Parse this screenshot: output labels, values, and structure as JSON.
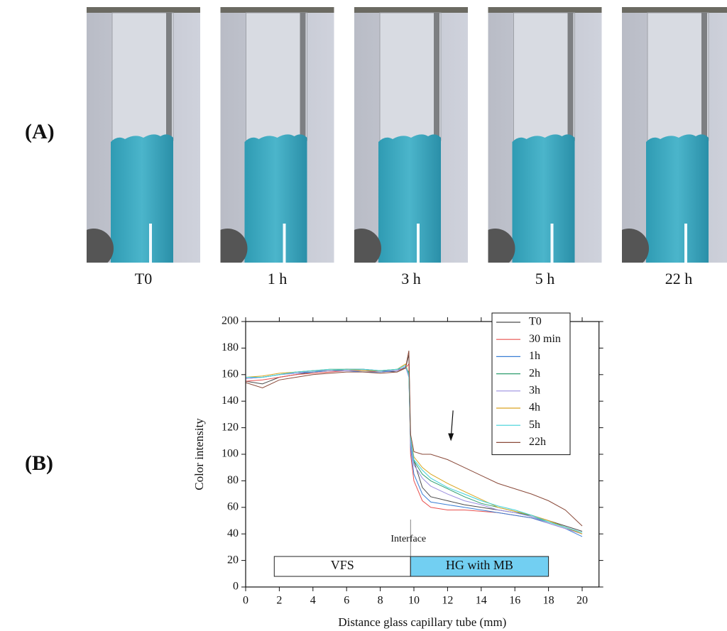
{
  "panel_labels": [
    "(A)",
    "(B)"
  ],
  "photos": {
    "labels": [
      "T0",
      "1 h",
      "3 h",
      "5 h",
      "22 h"
    ]
  },
  "chart_data": {
    "type": "line",
    "xlabel": "Distance glass capillary tube (mm)",
    "ylabel": "Color intensity",
    "xlim": [
      0,
      21
    ],
    "xticks": [
      0,
      2,
      4,
      6,
      8,
      10,
      12,
      14,
      16,
      18,
      20
    ],
    "ylim": [
      0,
      200
    ],
    "yticks": [
      0,
      20,
      40,
      60,
      80,
      100,
      120,
      140,
      160,
      180,
      200
    ],
    "legend": "upper right",
    "x": [
      0,
      1,
      2,
      3,
      4,
      5,
      6,
      7,
      8,
      9,
      9.5,
      9.7,
      9.8,
      10,
      10.5,
      11,
      12,
      13,
      14,
      15,
      16,
      17,
      18,
      19,
      20
    ],
    "series": [
      {
        "name": "T0",
        "color": "#4a4a4a",
        "values": [
          155,
          153,
          158,
          160,
          162,
          163,
          164,
          164,
          163,
          162,
          165,
          175,
          110,
          95,
          75,
          68,
          65,
          62,
          60,
          58,
          56,
          54,
          50,
          46,
          42
        ]
      },
      {
        "name": "30 min",
        "color": "#e8504e",
        "values": [
          155,
          156,
          158,
          160,
          161,
          162,
          163,
          163,
          162,
          163,
          165,
          168,
          100,
          80,
          65,
          60,
          58,
          58,
          57,
          56,
          54,
          52,
          48,
          44,
          40
        ]
      },
      {
        "name": "1h",
        "color": "#3a7fd5",
        "values": [
          157,
          158,
          160,
          161,
          162,
          163,
          163,
          162,
          162,
          163,
          166,
          160,
          105,
          85,
          70,
          64,
          62,
          60,
          58,
          56,
          54,
          52,
          48,
          44,
          38
        ]
      },
      {
        "name": "2h",
        "color": "#2e9e6e",
        "values": [
          158,
          158,
          160,
          162,
          163,
          163,
          164,
          163,
          163,
          164,
          165,
          162,
          110,
          95,
          85,
          80,
          74,
          68,
          63,
          60,
          57,
          53,
          49,
          45,
          40
        ]
      },
      {
        "name": "3h",
        "color": "#9b8fe0",
        "values": [
          157,
          158,
          160,
          161,
          163,
          163,
          163,
          163,
          163,
          163,
          166,
          158,
          108,
          92,
          82,
          76,
          70,
          65,
          62,
          58,
          56,
          53,
          48,
          44,
          40
        ]
      },
      {
        "name": "4h",
        "color": "#d9a520",
        "values": [
          158,
          159,
          161,
          162,
          163,
          164,
          164,
          163,
          163,
          164,
          168,
          160,
          112,
          98,
          90,
          85,
          78,
          72,
          66,
          60,
          57,
          54,
          50,
          45,
          40
        ]
      },
      {
        "name": "5h",
        "color": "#3fd1d8",
        "values": [
          158,
          158,
          160,
          162,
          163,
          164,
          164,
          164,
          163,
          164,
          167,
          160,
          112,
          96,
          88,
          82,
          75,
          70,
          65,
          61,
          58,
          54,
          49,
          45,
          41
        ]
      },
      {
        "name": "22h",
        "color": "#8a4a3a",
        "values": [
          154,
          150,
          156,
          158,
          160,
          161,
          162,
          162,
          161,
          162,
          165,
          178,
          115,
          102,
          100,
          100,
          96,
          90,
          84,
          78,
          74,
          70,
          65,
          58,
          46
        ]
      }
    ],
    "interface": {
      "label": "Interface",
      "x": 9.8
    },
    "regions": [
      {
        "label": "VFS",
        "x": [
          1.7,
          9.8
        ],
        "y": [
          8,
          23
        ],
        "color": "#ffffff"
      },
      {
        "label": "HG with MB",
        "x": [
          9.8,
          18
        ],
        "y": [
          8,
          23
        ],
        "color": "#72cff2"
      }
    ],
    "arrow": {
      "x": 12.2,
      "y": [
        133,
        112
      ]
    }
  }
}
